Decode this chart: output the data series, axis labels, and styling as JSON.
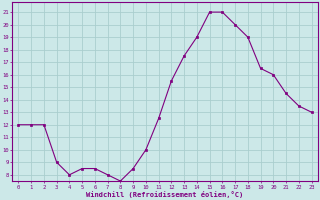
{
  "hours": [
    0,
    1,
    2,
    3,
    4,
    5,
    6,
    7,
    8,
    9,
    10,
    11,
    12,
    13,
    14,
    15,
    16,
    17,
    18,
    19,
    20,
    21,
    22,
    23
  ],
  "values": [
    12,
    12,
    12,
    9,
    8,
    8.5,
    8.5,
    8,
    7.5,
    8.5,
    10,
    12.5,
    15.5,
    17.5,
    19,
    21,
    21,
    20,
    19,
    16.5,
    16,
    14.5,
    13.5,
    13
  ],
  "line_color": "#800080",
  "marker_color": "#800080",
  "bg_color": "#cce8e8",
  "grid_color": "#aacece",
  "axis_color": "#800080",
  "xlabel": "Windchill (Refroidissement éolien,°C)",
  "yticks": [
    8,
    9,
    10,
    11,
    12,
    13,
    14,
    15,
    16,
    17,
    18,
    19,
    20,
    21
  ],
  "ylim": [
    7.5,
    21.8
  ],
  "xlim": [
    -0.5,
    23.5
  ]
}
